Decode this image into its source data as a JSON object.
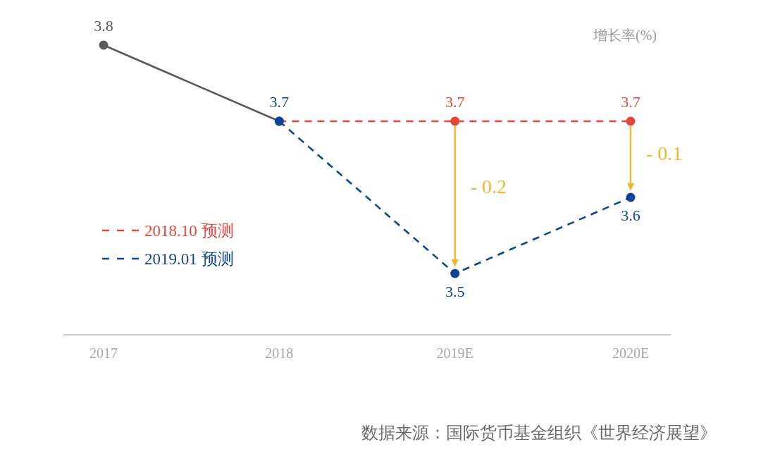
{
  "chart_data": {
    "type": "line",
    "categories": [
      "2017",
      "2018",
      "2019E",
      "2020E"
    ],
    "tick_labels": "x",
    "ylabel": "增长率(%)",
    "marker": "circle",
    "legend": "left",
    "series": [
      {
        "color": "#5b5b5b",
        "line_style": "solid",
        "values": [
          3.8,
          3.7,
          null,
          null
        ],
        "value_labels": [
          "3.8",
          null,
          null,
          null
        ]
      },
      {
        "name": "2018.10 预测",
        "color": "#e2473b",
        "line_style": "dashed",
        "values": [
          null,
          3.7,
          3.7,
          3.7
        ],
        "value_labels": [
          null,
          null,
          "3.7",
          "3.7"
        ]
      },
      {
        "name": "2019.01 预测",
        "color": "#0e4596",
        "line_style": "dashed",
        "values": [
          null,
          3.7,
          3.5,
          3.6
        ],
        "value_labels": [
          null,
          "3.7",
          "3.5",
          "3.6"
        ]
      }
    ],
    "annotations": [
      "- 0.2",
      "- 0.1",
      "数据来源：国际货币基金组织《世界经济展望》"
    ]
  }
}
